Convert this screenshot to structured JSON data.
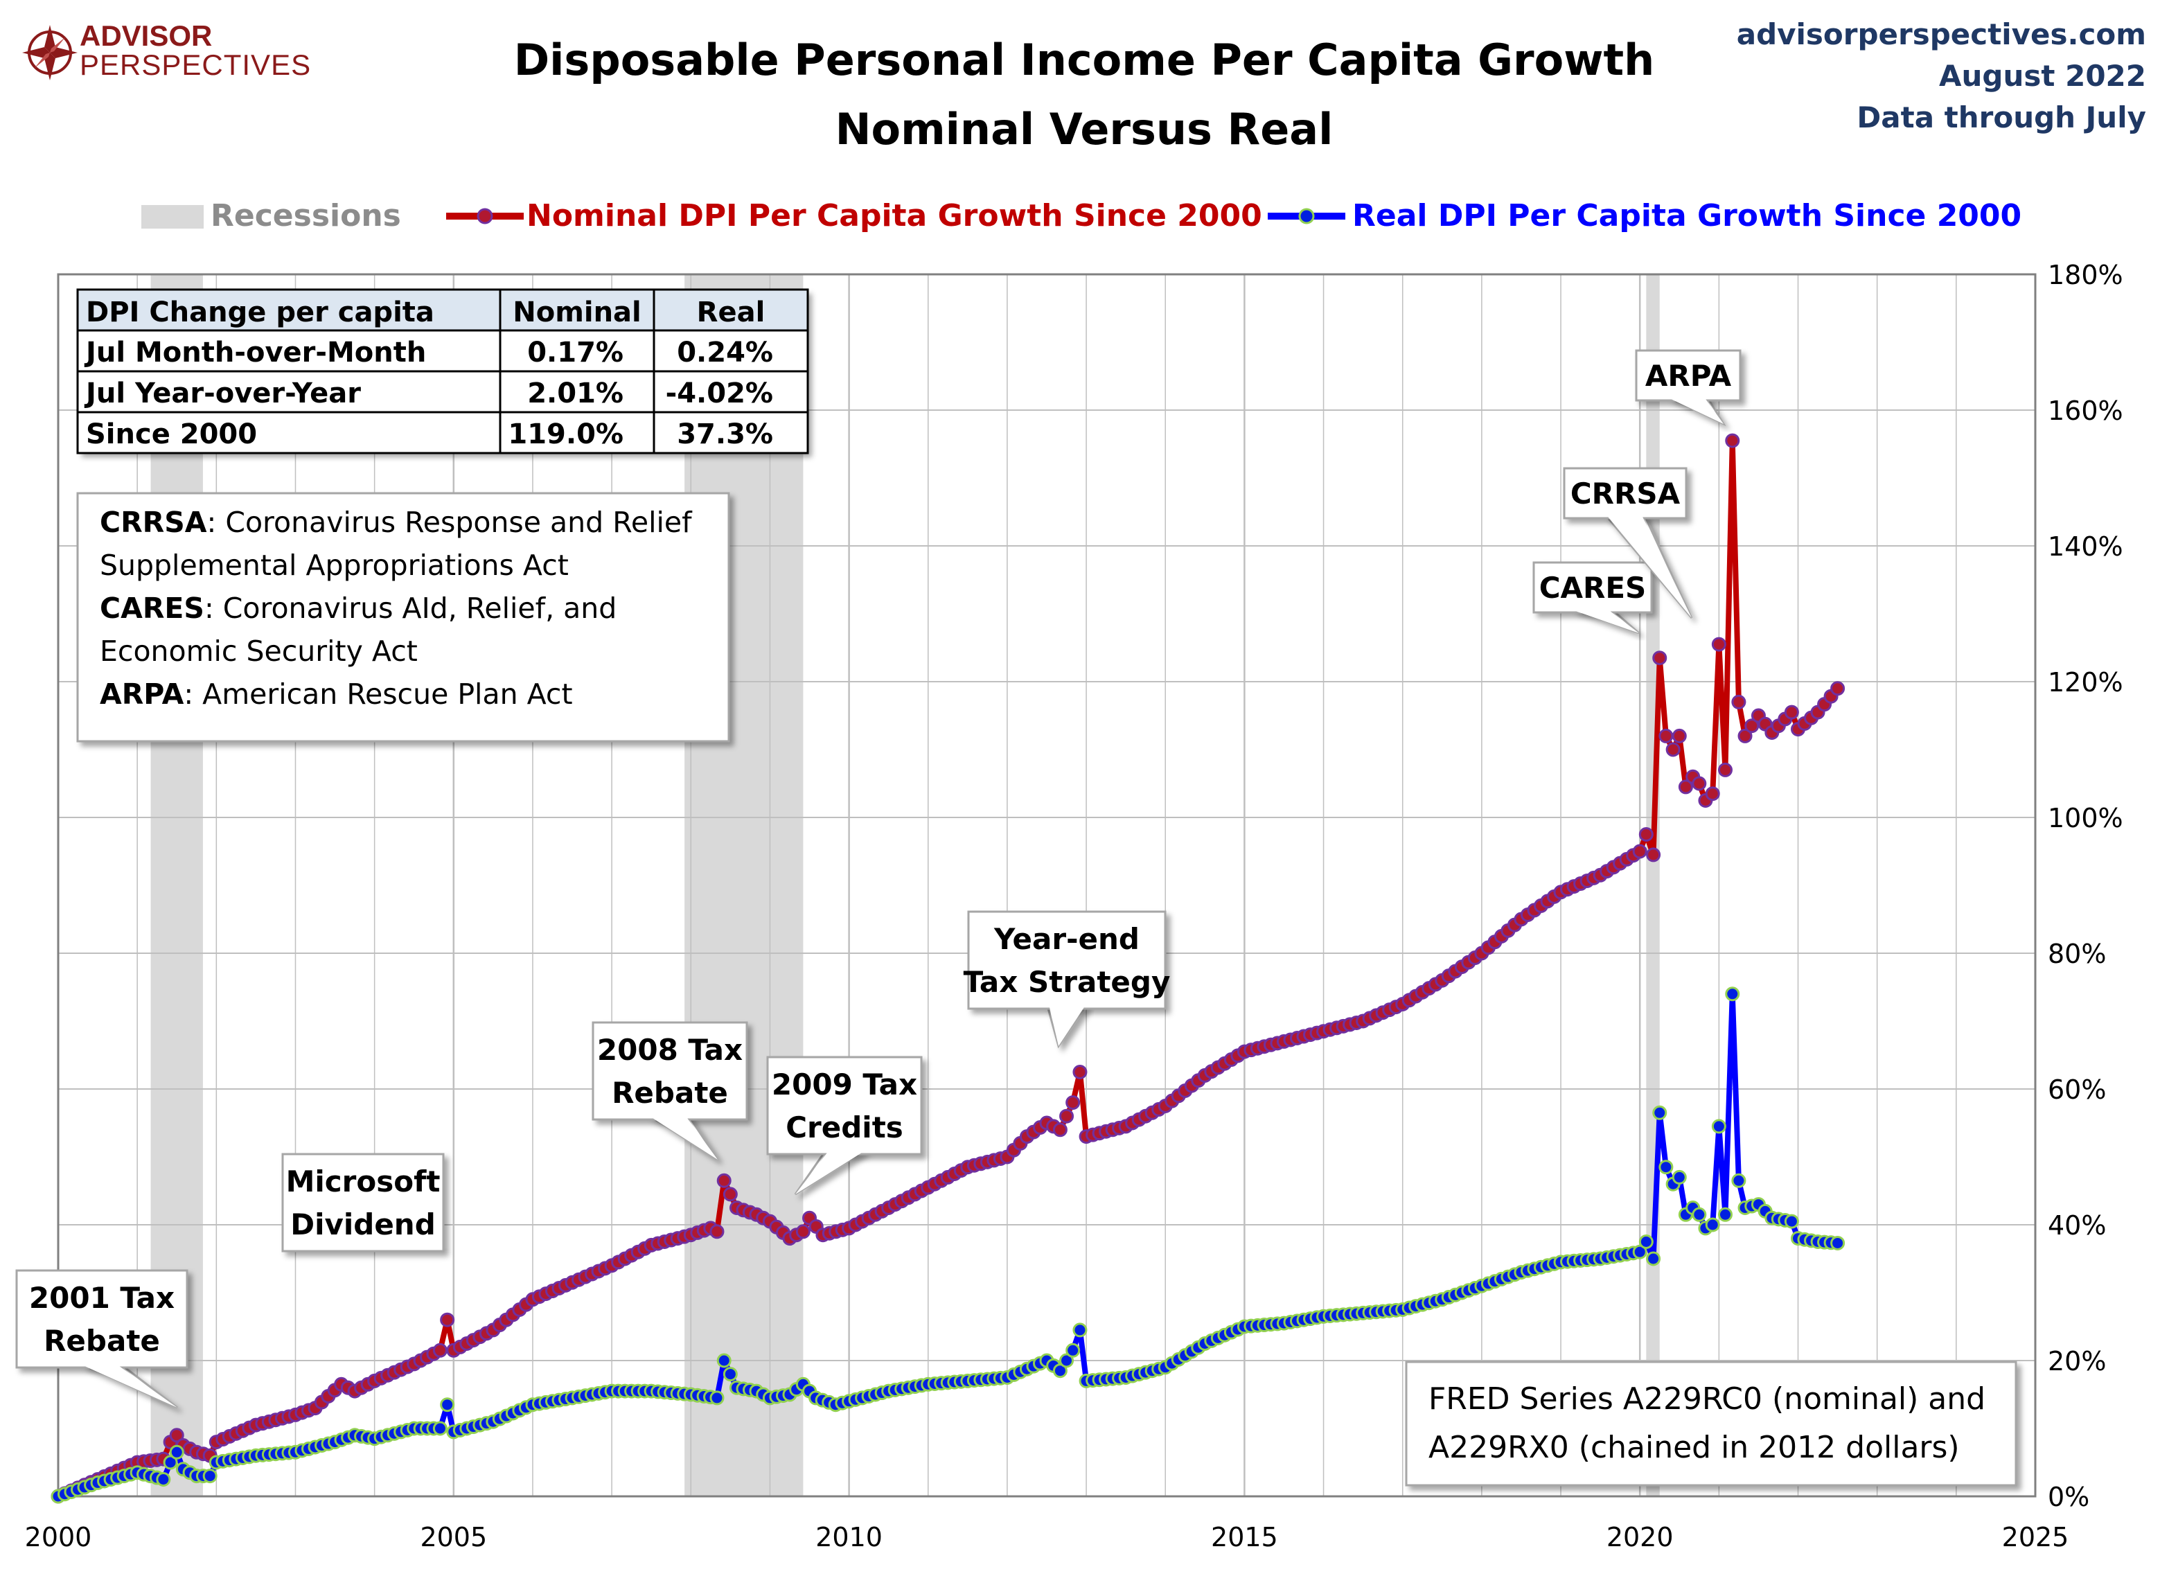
{
  "brand": {
    "line1": "ADVISOR",
    "line2": "PERSPECTIVES",
    "logo_icon": "compass-rose-icon",
    "color": "#8b1a1a"
  },
  "header": {
    "title_line1": "Disposable Personal Income Per Capita Growth",
    "title_line2": "Nominal Versus Real",
    "site": "advisorperspectives.com",
    "date": "August 2022",
    "data_through": "Data through July"
  },
  "legend": {
    "recessions": "Recessions",
    "nominal": "Nominal DPI Per Capita Growth Since 2000",
    "real": "Real DPI Per Capita Growth Since 2000",
    "placement": "top"
  },
  "stats_table": {
    "headers": [
      "DPI Change per capita",
      "Nominal",
      "Real"
    ],
    "rows": [
      [
        "Jul Month-over-Month",
        "0.17%",
        "0.24%"
      ],
      [
        "Jul Year-over-Year",
        "2.01%",
        "-4.02%"
      ],
      [
        "Since 2000",
        "119.0%",
        "37.3%"
      ]
    ]
  },
  "acronyms": [
    {
      "abbr": "CRRSA",
      "lines": [
        ": Coronavirus Response and Relief",
        "Supplemental Appropriations Act"
      ]
    },
    {
      "abbr": "CARES",
      "lines": [
        ": Coronavirus AId, Relief, and",
        "Economic Security Act"
      ]
    },
    {
      "abbr": "ARPA",
      "lines": [
        ": American Rescue Plan Act"
      ]
    }
  ],
  "source_note": [
    "FRED Series A229RC0 (nominal) and",
    "A229RX0 (chained in 2012 dollars)"
  ],
  "colors": {
    "nominal_line": "#c00000",
    "nominal_marker": "#b01830",
    "nominal_marker_edge": "#7030a0",
    "real_line": "#0000ff",
    "real_marker": "#0020e0",
    "real_marker_edge": "#92d050",
    "recession": "#d9d9d9",
    "grid": "#bfbfbf"
  },
  "chart_data": {
    "type": "line",
    "title": "Disposable Personal Income Per Capita Growth Nominal Versus Real",
    "xlim": [
      2000,
      2025
    ],
    "ylim": [
      0,
      180
    ],
    "x_ticks": [
      2000,
      2005,
      2010,
      2015,
      2020,
      2025
    ],
    "y_ticks": [
      0,
      20,
      40,
      60,
      80,
      100,
      120,
      140,
      160,
      180
    ],
    "y_tick_labels": [
      "0%",
      "20%",
      "40%",
      "60%",
      "80%",
      "100%",
      "120%",
      "140%",
      "160%",
      "180%"
    ],
    "y_axis_side": "right",
    "grid": true,
    "recessions": [
      [
        2001.17,
        2001.83
      ],
      [
        2007.92,
        2009.42
      ],
      [
        2020.08,
        2020.25
      ]
    ],
    "series": [
      {
        "name": "Nominal DPI Per Capita Growth Since 2000",
        "anchors": [
          [
            2000.0,
            0.0
          ],
          [
            2000.5,
            2.5
          ],
          [
            2001.0,
            5.0
          ],
          [
            2001.33,
            5.5
          ],
          [
            2001.42,
            8.0
          ],
          [
            2001.5,
            9.0
          ],
          [
            2001.58,
            7.5
          ],
          [
            2001.75,
            6.5
          ],
          [
            2001.92,
            6.0
          ],
          [
            2002.0,
            8.0
          ],
          [
            2002.5,
            10.5
          ],
          [
            2003.0,
            12.0
          ],
          [
            2003.25,
            13.0
          ],
          [
            2003.58,
            16.5
          ],
          [
            2003.75,
            15.5
          ],
          [
            2004.0,
            17.0
          ],
          [
            2004.5,
            19.5
          ],
          [
            2004.83,
            21.5
          ],
          [
            2004.92,
            26.0
          ],
          [
            2005.0,
            21.5
          ],
          [
            2005.5,
            24.5
          ],
          [
            2006.0,
            29.0
          ],
          [
            2006.5,
            31.5
          ],
          [
            2007.0,
            34.0
          ],
          [
            2007.5,
            37.0
          ],
          [
            2008.0,
            38.5
          ],
          [
            2008.25,
            39.5
          ],
          [
            2008.33,
            39.0
          ],
          [
            2008.42,
            46.5
          ],
          [
            2008.58,
            42.5
          ],
          [
            2008.83,
            41.5
          ],
          [
            2009.0,
            40.5
          ],
          [
            2009.25,
            38.0
          ],
          [
            2009.42,
            39.0
          ],
          [
            2009.5,
            41.0
          ],
          [
            2009.67,
            38.5
          ],
          [
            2010.0,
            39.5
          ],
          [
            2010.5,
            42.5
          ],
          [
            2011.0,
            45.5
          ],
          [
            2011.5,
            48.5
          ],
          [
            2012.0,
            50.0
          ],
          [
            2012.25,
            53.0
          ],
          [
            2012.5,
            55.0
          ],
          [
            2012.67,
            54.0
          ],
          [
            2012.83,
            58.0
          ],
          [
            2012.92,
            62.5
          ],
          [
            2013.0,
            53.0
          ],
          [
            2013.5,
            54.5
          ],
          [
            2014.0,
            57.5
          ],
          [
            2014.5,
            62.0
          ],
          [
            2015.0,
            65.5
          ],
          [
            2015.5,
            67.0
          ],
          [
            2016.0,
            68.5
          ],
          [
            2016.5,
            70.0
          ],
          [
            2017.0,
            72.5
          ],
          [
            2017.5,
            76.0
          ],
          [
            2018.0,
            80.0
          ],
          [
            2018.5,
            85.0
          ],
          [
            2019.0,
            89.0
          ],
          [
            2019.5,
            91.5
          ],
          [
            2020.0,
            95.0
          ],
          [
            2020.08,
            97.5
          ],
          [
            2020.17,
            94.5
          ],
          [
            2020.25,
            123.5
          ],
          [
            2020.33,
            112.0
          ],
          [
            2020.42,
            110.0
          ],
          [
            2020.5,
            112.0
          ],
          [
            2020.58,
            104.5
          ],
          [
            2020.67,
            106.0
          ],
          [
            2020.75,
            105.0
          ],
          [
            2020.83,
            102.5
          ],
          [
            2020.92,
            103.5
          ],
          [
            2021.0,
            125.5
          ],
          [
            2021.08,
            107.0
          ],
          [
            2021.17,
            155.5
          ],
          [
            2021.25,
            117.0
          ],
          [
            2021.33,
            112.0
          ],
          [
            2021.5,
            115.0
          ],
          [
            2021.67,
            112.5
          ],
          [
            2021.92,
            115.5
          ],
          [
            2022.0,
            113.0
          ],
          [
            2022.25,
            115.5
          ],
          [
            2022.5,
            119.0
          ]
        ]
      },
      {
        "name": "Real DPI Per Capita Growth Since 2000",
        "anchors": [
          [
            2000.0,
            0.0
          ],
          [
            2000.5,
            2.0
          ],
          [
            2001.0,
            3.5
          ],
          [
            2001.33,
            2.5
          ],
          [
            2001.42,
            5.0
          ],
          [
            2001.5,
            6.5
          ],
          [
            2001.58,
            4.0
          ],
          [
            2001.75,
            3.0
          ],
          [
            2001.92,
            3.0
          ],
          [
            2002.0,
            5.0
          ],
          [
            2002.5,
            6.0
          ],
          [
            2003.0,
            6.5
          ],
          [
            2003.5,
            8.0
          ],
          [
            2003.75,
            9.0
          ],
          [
            2004.0,
            8.5
          ],
          [
            2004.5,
            10.0
          ],
          [
            2004.83,
            10.0
          ],
          [
            2004.92,
            13.5
          ],
          [
            2005.0,
            9.5
          ],
          [
            2005.5,
            11.0
          ],
          [
            2006.0,
            13.5
          ],
          [
            2006.5,
            14.5
          ],
          [
            2007.0,
            15.5
          ],
          [
            2007.5,
            15.5
          ],
          [
            2008.0,
            15.0
          ],
          [
            2008.33,
            14.5
          ],
          [
            2008.42,
            20.0
          ],
          [
            2008.58,
            16.0
          ],
          [
            2008.83,
            15.5
          ],
          [
            2009.0,
            14.5
          ],
          [
            2009.25,
            15.0
          ],
          [
            2009.42,
            16.5
          ],
          [
            2009.58,
            14.5
          ],
          [
            2009.83,
            13.5
          ],
          [
            2010.0,
            14.0
          ],
          [
            2010.5,
            15.5
          ],
          [
            2011.0,
            16.5
          ],
          [
            2011.5,
            17.0
          ],
          [
            2012.0,
            17.5
          ],
          [
            2012.5,
            20.0
          ],
          [
            2012.67,
            18.5
          ],
          [
            2012.83,
            21.5
          ],
          [
            2012.92,
            24.5
          ],
          [
            2013.0,
            17.0
          ],
          [
            2013.5,
            17.5
          ],
          [
            2014.0,
            19.0
          ],
          [
            2014.5,
            22.5
          ],
          [
            2015.0,
            25.0
          ],
          [
            2015.5,
            25.5
          ],
          [
            2016.0,
            26.5
          ],
          [
            2016.5,
            27.0
          ],
          [
            2017.0,
            27.5
          ],
          [
            2017.5,
            29.0
          ],
          [
            2018.0,
            31.0
          ],
          [
            2018.5,
            33.0
          ],
          [
            2019.0,
            34.5
          ],
          [
            2019.5,
            35.0
          ],
          [
            2020.0,
            36.0
          ],
          [
            2020.08,
            37.5
          ],
          [
            2020.17,
            35.0
          ],
          [
            2020.25,
            56.5
          ],
          [
            2020.33,
            48.5
          ],
          [
            2020.42,
            46.0
          ],
          [
            2020.5,
            47.0
          ],
          [
            2020.58,
            41.5
          ],
          [
            2020.67,
            42.5
          ],
          [
            2020.75,
            41.5
          ],
          [
            2020.83,
            39.5
          ],
          [
            2020.92,
            40.0
          ],
          [
            2021.0,
            54.5
          ],
          [
            2021.08,
            41.5
          ],
          [
            2021.17,
            74.0
          ],
          [
            2021.25,
            46.5
          ],
          [
            2021.33,
            42.5
          ],
          [
            2021.5,
            43.0
          ],
          [
            2021.67,
            41.0
          ],
          [
            2021.92,
            40.5
          ],
          [
            2022.0,
            38.0
          ],
          [
            2022.25,
            37.5
          ],
          [
            2022.5,
            37.3
          ]
        ]
      }
    ],
    "annotations": [
      {
        "lines": [
          "2001 Tax",
          "Rebate"
        ],
        "x": 2001.42,
        "y": 8.0
      },
      {
        "lines": [
          "Microsoft",
          "Dividend"
        ],
        "x": 2004.92,
        "y": 26.0
      },
      {
        "lines": [
          "2008 Tax",
          "Rebate"
        ],
        "x": 2008.42,
        "y": 46.5
      },
      {
        "lines": [
          "2009 Tax",
          "Credits"
        ],
        "x": 2009.5,
        "y": 41.0
      },
      {
        "lines": [
          "Year-end",
          "Tax Strategy"
        ],
        "x": 2012.92,
        "y": 62.5
      },
      {
        "lines": [
          "CARES"
        ],
        "x": 2020.25,
        "y": 123.5
      },
      {
        "lines": [
          "CRRSA"
        ],
        "x": 2021.0,
        "y": 125.5
      },
      {
        "lines": [
          "ARPA"
        ],
        "x": 2021.17,
        "y": 155.5
      }
    ]
  }
}
